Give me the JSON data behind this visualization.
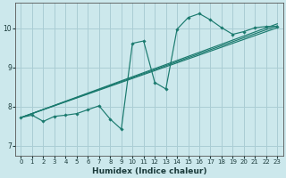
{
  "xlabel": "Humidex (Indice chaleur)",
  "ylabel": "",
  "bg_color": "#cce8ec",
  "grid_color": "#aacdd4",
  "line_color": "#1a7a6e",
  "xlim": [
    -0.5,
    23.5
  ],
  "ylim": [
    6.75,
    10.65
  ],
  "yticks": [
    7,
    8,
    9,
    10
  ],
  "xticks": [
    0,
    1,
    2,
    3,
    4,
    5,
    6,
    7,
    8,
    9,
    10,
    11,
    12,
    13,
    14,
    15,
    16,
    17,
    18,
    19,
    20,
    21,
    22,
    23
  ],
  "jagged_x": [
    0,
    1,
    2,
    3,
    4,
    5,
    6,
    7,
    8,
    9,
    10,
    11,
    12,
    13,
    14,
    15,
    16,
    17,
    18,
    19,
    20,
    21,
    22,
    23
  ],
  "jagged_y": [
    7.72,
    7.78,
    7.62,
    7.75,
    7.78,
    7.82,
    7.92,
    8.02,
    7.68,
    7.42,
    9.62,
    9.68,
    8.62,
    8.45,
    9.98,
    10.28,
    10.38,
    10.22,
    10.02,
    9.85,
    9.92,
    10.02,
    10.05,
    10.05
  ],
  "straight_lines": [
    {
      "x": [
        0,
        23
      ],
      "y": [
        7.72,
        10.02
      ]
    },
    {
      "x": [
        0,
        23
      ],
      "y": [
        7.72,
        10.07
      ]
    },
    {
      "x": [
        0,
        23
      ],
      "y": [
        7.72,
        10.12
      ]
    }
  ]
}
